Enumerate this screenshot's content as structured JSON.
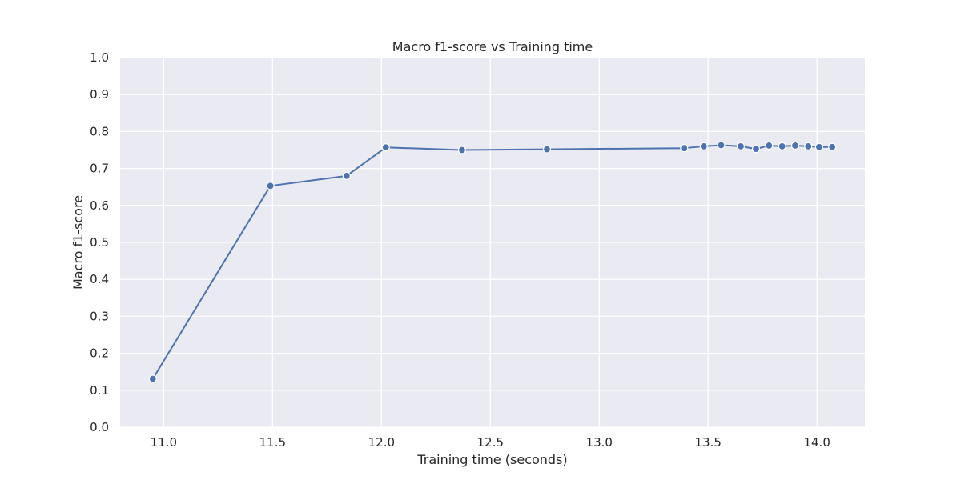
{
  "chart_data": {
    "type": "line",
    "title": "Macro f1-score vs Training time",
    "xlabel": "Training time (seconds)",
    "ylabel": "Macro f1-score",
    "xlim": [
      10.8,
      14.22
    ],
    "ylim": [
      0.0,
      1.0
    ],
    "xticks": [
      11.0,
      11.5,
      12.0,
      12.5,
      13.0,
      13.5,
      14.0
    ],
    "xtick_labels": [
      "11.0",
      "11.5",
      "12.0",
      "12.5",
      "13.0",
      "13.5",
      "14.0"
    ],
    "yticks": [
      0.0,
      0.1,
      0.2,
      0.3,
      0.4,
      0.5,
      0.6,
      0.7,
      0.8,
      0.9,
      1.0
    ],
    "ytick_labels": [
      "0.0",
      "0.1",
      "0.2",
      "0.3",
      "0.4",
      "0.5",
      "0.6",
      "0.7",
      "0.8",
      "0.9",
      "1.0"
    ],
    "grid": true,
    "colors": {
      "background": "#eaeaf2",
      "grid": "#ffffff",
      "line": "#4c72b0",
      "marker_edge": "#ffffff"
    },
    "series": [
      {
        "x": [
          10.95,
          11.49,
          11.84,
          12.02,
          12.37,
          12.76,
          13.39,
          13.48,
          13.56,
          13.65,
          13.72,
          13.78,
          13.84,
          13.9,
          13.96,
          14.01,
          14.07
        ],
        "y": [
          0.131,
          0.653,
          0.68,
          0.757,
          0.75,
          0.752,
          0.755,
          0.76,
          0.763,
          0.76,
          0.753,
          0.762,
          0.76,
          0.762,
          0.76,
          0.758,
          0.758
        ]
      }
    ]
  }
}
